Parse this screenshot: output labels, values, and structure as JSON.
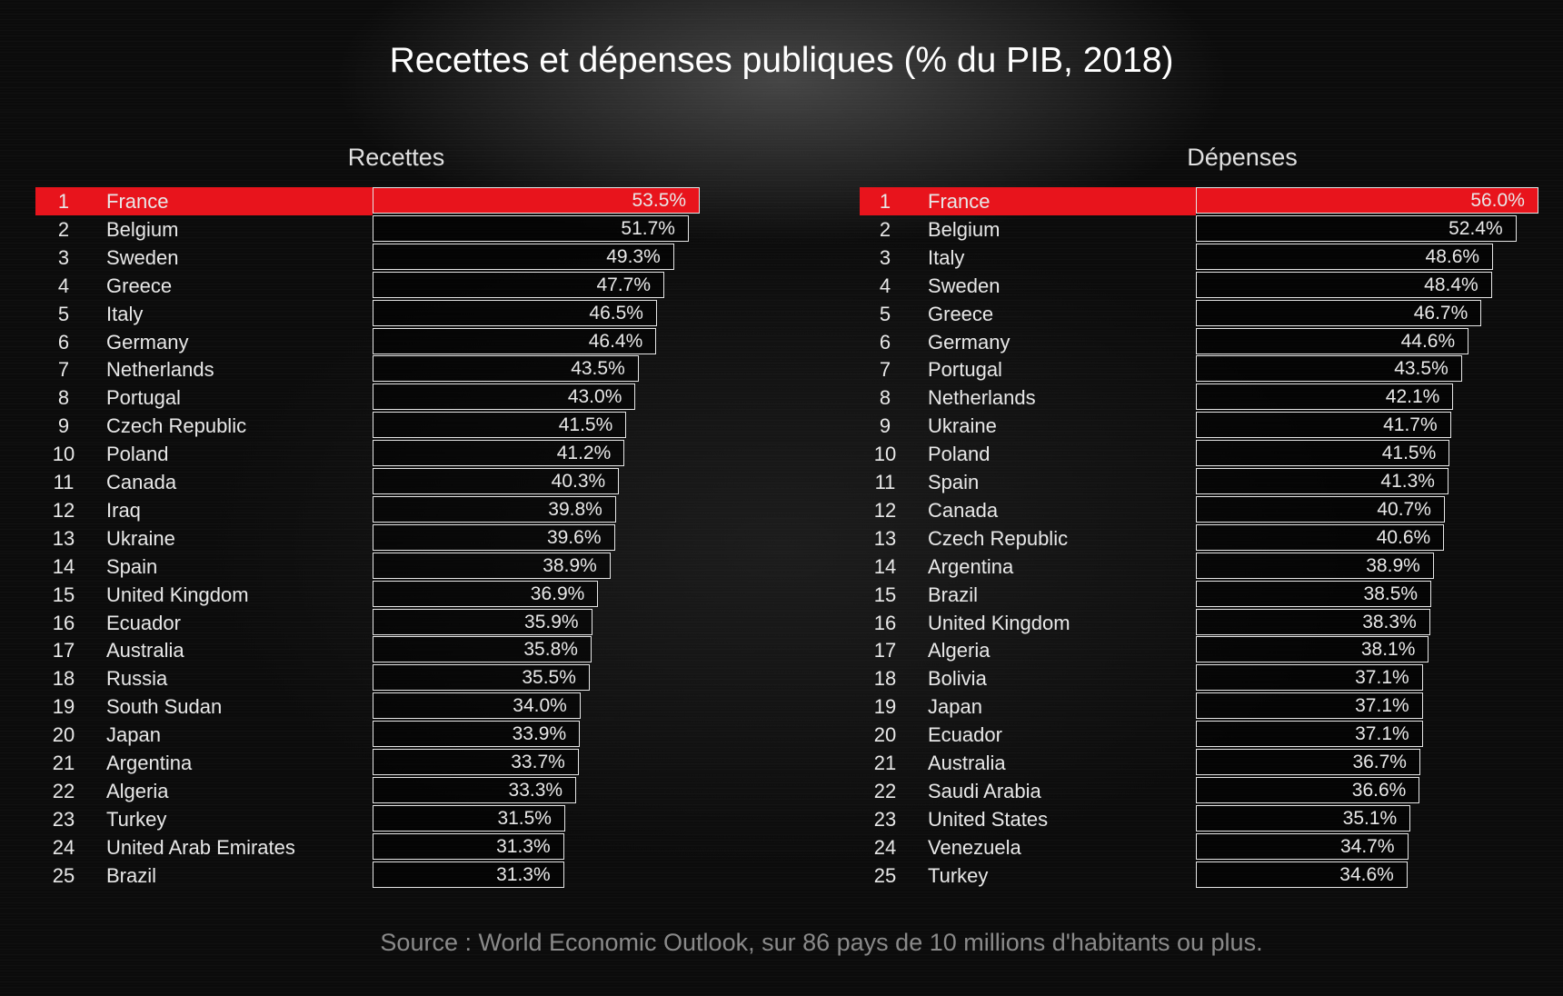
{
  "title": "Recettes et dépenses publiques (% du PIB, 2018)",
  "source": "Source : World Economic Outlook, sur 86 pays de 10 millions d'habitants ou plus.",
  "colors": {
    "highlight": "#e8141c",
    "bar_border": "#e6e6e6",
    "text": "#e8e8e8"
  },
  "chart_data": [
    {
      "type": "bar",
      "title": "Recettes",
      "unit": "%",
      "highlight": "France",
      "categories": [
        "France",
        "Belgium",
        "Sweden",
        "Greece",
        "Italy",
        "Germany",
        "Netherlands",
        "Portugal",
        "Czech Republic",
        "Poland",
        "Canada",
        "Iraq",
        "Ukraine",
        "Spain",
        "United Kingdom",
        "Ecuador",
        "Australia",
        "Russia",
        "South Sudan",
        "Japan",
        "Argentina",
        "Algeria",
        "Turkey",
        "United Arab Emirates",
        "Brazil"
      ],
      "values": [
        53.5,
        51.7,
        49.3,
        47.7,
        46.5,
        46.4,
        43.5,
        43.0,
        41.5,
        41.2,
        40.3,
        39.8,
        39.6,
        38.9,
        36.9,
        35.9,
        35.8,
        35.5,
        34.0,
        33.9,
        33.7,
        33.3,
        31.5,
        31.3,
        31.3
      ],
      "labels": [
        "53.5%",
        "51.7%",
        "49.3%",
        "47.7%",
        "46.5%",
        "46.4%",
        "43.5%",
        "43.0%",
        "41.5%",
        "41.2%",
        "40.3%",
        "39.8%",
        "39.6%",
        "38.9%",
        "36.9%",
        "35.9%",
        "35.8%",
        "35.5%",
        "34.0%",
        "33.9%",
        "33.7%",
        "33.3%",
        "31.5%",
        "31.3%",
        "31.3%"
      ]
    },
    {
      "type": "bar",
      "title": "Dépenses",
      "unit": "%",
      "highlight": "France",
      "categories": [
        "France",
        "Belgium",
        "Italy",
        "Sweden",
        "Greece",
        "Germany",
        "Portugal",
        "Netherlands",
        "Ukraine",
        "Poland",
        "Spain",
        "Canada",
        "Czech Republic",
        "Argentina",
        "Brazil",
        "United Kingdom",
        "Algeria",
        "Bolivia",
        "Japan",
        "Ecuador",
        "Australia",
        "Saudi Arabia",
        "United States",
        "Venezuela",
        "Turkey"
      ],
      "values": [
        56.0,
        52.4,
        48.6,
        48.4,
        46.7,
        44.6,
        43.5,
        42.1,
        41.7,
        41.5,
        41.3,
        40.7,
        40.6,
        38.9,
        38.5,
        38.3,
        38.1,
        37.1,
        37.1,
        37.1,
        36.7,
        36.6,
        35.1,
        34.7,
        34.6
      ],
      "labels": [
        "56.0%",
        "52.4%",
        "48.6%",
        "48.4%",
        "46.7%",
        "44.6%",
        "43.5%",
        "42.1%",
        "41.7%",
        "41.5%",
        "41.3%",
        "40.7%",
        "40.6%",
        "38.9%",
        "38.5%",
        "38.3%",
        "38.1%",
        "37.1%",
        "37.1%",
        "37.1%",
        "36.7%",
        "36.6%",
        "35.1%",
        "34.7%",
        "34.6%"
      ]
    }
  ]
}
